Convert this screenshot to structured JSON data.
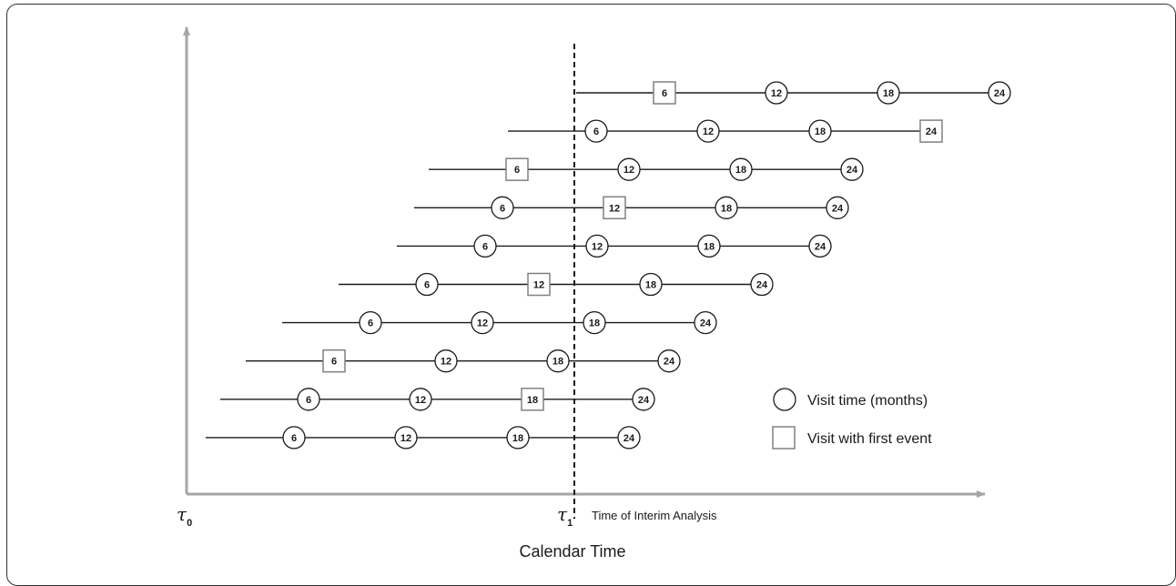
{
  "diagram": {
    "subjects": [
      {
        "start": 633,
        "visits": [
          {
            "label": "6",
            "event": true
          },
          {
            "label": "12",
            "event": false
          },
          {
            "label": "18",
            "event": false
          },
          {
            "label": "24",
            "event": false
          }
        ]
      },
      {
        "start": 558,
        "visits": [
          {
            "label": "6",
            "event": false
          },
          {
            "label": "12",
            "event": false
          },
          {
            "label": "18",
            "event": false
          },
          {
            "label": "24",
            "event": true
          }
        ]
      },
      {
        "start": 471,
        "visits": [
          {
            "label": "6",
            "event": true
          },
          {
            "label": "12",
            "event": false
          },
          {
            "label": "18",
            "event": false
          },
          {
            "label": "24",
            "event": false
          }
        ]
      },
      {
        "start": 455,
        "visits": [
          {
            "label": "6",
            "event": false
          },
          {
            "label": "12",
            "event": true
          },
          {
            "label": "18",
            "event": false
          },
          {
            "label": "24",
            "event": false
          }
        ]
      },
      {
        "start": 436,
        "visits": [
          {
            "label": "6",
            "event": false
          },
          {
            "label": "12",
            "event": false
          },
          {
            "label": "18",
            "event": false
          },
          {
            "label": "24",
            "event": false
          }
        ]
      },
      {
        "start": 372,
        "visits": [
          {
            "label": "6",
            "event": false
          },
          {
            "label": "12",
            "event": true
          },
          {
            "label": "18",
            "event": false
          },
          {
            "label": "24",
            "event": false
          }
        ]
      },
      {
        "start": 310,
        "visits": [
          {
            "label": "6",
            "event": false
          },
          {
            "label": "12",
            "event": false
          },
          {
            "label": "18",
            "event": false
          },
          {
            "label": "24",
            "event": false
          }
        ]
      },
      {
        "start": 270,
        "visits": [
          {
            "label": "6",
            "event": true
          },
          {
            "label": "12",
            "event": false
          },
          {
            "label": "18",
            "event": false
          },
          {
            "label": "24",
            "event": false
          }
        ]
      },
      {
        "start": 242,
        "visits": [
          {
            "label": "6",
            "event": false
          },
          {
            "label": "12",
            "event": false
          },
          {
            "label": "18",
            "event": true
          },
          {
            "label": "24",
            "event": false
          }
        ]
      },
      {
        "start": 226,
        "visits": [
          {
            "label": "6",
            "event": false
          },
          {
            "label": "12",
            "event": false
          },
          {
            "label": "18",
            "event": false
          },
          {
            "label": "24",
            "event": false
          }
        ]
      }
    ],
    "legend": {
      "circle_label": "Visit time (months)",
      "square_label": "Visit with first event"
    },
    "tau0": {
      "symbol": "τ",
      "sub": "0"
    },
    "tau1": {
      "symbol": "τ",
      "sub": "1"
    },
    "interim_label": "Time of Interim Analysis",
    "xlabel": "Calendar Time",
    "colors": {
      "axis": "#a6a6a6",
      "line": "#1a1a1a",
      "square_border": "#808080"
    }
  }
}
